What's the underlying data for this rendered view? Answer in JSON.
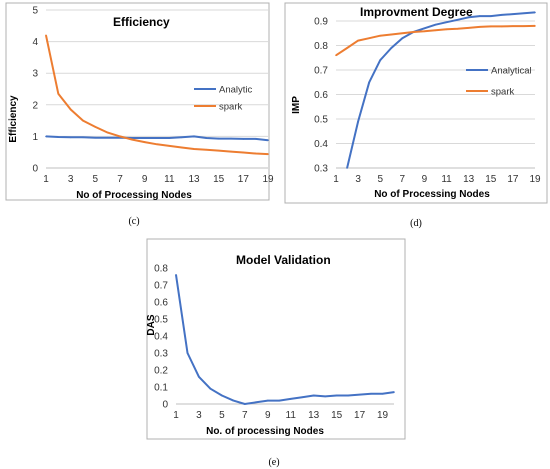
{
  "colors": {
    "analytic": "#4472c4",
    "spark": "#ed7d31",
    "frame": "#b0b0b0",
    "grid": "#d9d9d9"
  },
  "chart_data": [
    {
      "type": "line",
      "panel_label": "(c)",
      "title": "Efficiency",
      "xlabel": "No of Processing Nodes",
      "ylabel": "Efficiency",
      "xlim": [
        1,
        19
      ],
      "ylim": [
        0,
        5
      ],
      "xticks": [
        1,
        3,
        5,
        7,
        9,
        11,
        13,
        15,
        17,
        19
      ],
      "yticks": [
        0,
        1,
        2,
        3,
        4,
        5
      ],
      "grid": "horizontal",
      "legend": "right",
      "series": [
        {
          "name": "Analytic",
          "color": "#4472c4",
          "x": [
            1,
            2,
            3,
            4,
            5,
            6,
            7,
            8,
            9,
            10,
            11,
            12,
            13,
            14,
            15,
            16,
            17,
            18,
            19
          ],
          "y": [
            1.0,
            0.98,
            0.97,
            0.97,
            0.96,
            0.96,
            0.96,
            0.95,
            0.95,
            0.95,
            0.95,
            0.97,
            1.0,
            0.95,
            0.93,
            0.93,
            0.92,
            0.92,
            0.88
          ]
        },
        {
          "name": "spark",
          "color": "#ed7d31",
          "x": [
            1,
            2,
            3,
            4,
            5,
            6,
            7,
            8,
            9,
            10,
            11,
            12,
            13,
            14,
            15,
            16,
            17,
            18,
            19
          ],
          "y": [
            4.2,
            2.35,
            1.85,
            1.5,
            1.3,
            1.12,
            1.0,
            0.9,
            0.82,
            0.75,
            0.7,
            0.65,
            0.6,
            0.58,
            0.55,
            0.52,
            0.49,
            0.46,
            0.44
          ]
        }
      ]
    },
    {
      "type": "line",
      "panel_label": "(d)",
      "title": "Improvment Degree",
      "xlabel": "No of Processing Nodes",
      "ylabel": "IMP",
      "xlim": [
        1,
        19
      ],
      "ylim": [
        0.3,
        0.9
      ],
      "xticks": [
        1,
        3,
        5,
        7,
        9,
        11,
        13,
        15,
        17,
        19
      ],
      "yticks": [
        0.3,
        0.4,
        0.5,
        0.6,
        0.7,
        0.8,
        0.9
      ],
      "ytick_labels": [
        "0.3",
        "0.4",
        "0.5",
        "0.6",
        "0.7",
        "0.8",
        "0.9"
      ],
      "grid": "horizontal",
      "legend": "right",
      "series": [
        {
          "name": "Analytical",
          "color": "#4472c4",
          "x": [
            2,
            3,
            4,
            5,
            6,
            7,
            8,
            9,
            10,
            11,
            12,
            13,
            14,
            15,
            16,
            17,
            18,
            19
          ],
          "y": [
            0.3,
            0.49,
            0.65,
            0.74,
            0.79,
            0.83,
            0.855,
            0.87,
            0.885,
            0.895,
            0.905,
            0.915,
            0.92,
            0.92,
            0.925,
            0.928,
            0.932,
            0.935
          ]
        },
        {
          "name": "spark",
          "color": "#ed7d31",
          "x": [
            1,
            2,
            3,
            4,
            5,
            6,
            7,
            8,
            9,
            10,
            11,
            12,
            13,
            14,
            15,
            16,
            17,
            18,
            19
          ],
          "y": [
            0.76,
            0.79,
            0.82,
            0.83,
            0.84,
            0.845,
            0.85,
            0.855,
            0.858,
            0.862,
            0.866,
            0.868,
            0.872,
            0.876,
            0.878,
            0.878,
            0.879,
            0.879,
            0.88
          ]
        }
      ]
    },
    {
      "type": "line",
      "panel_label": "(e)",
      "title": "Model Validation",
      "xlabel": "No. of processing Nodes",
      "ylabel": "DAS",
      "xlim": [
        1,
        20
      ],
      "ylim": [
        0,
        0.8
      ],
      "xticks": [
        1,
        3,
        5,
        7,
        9,
        11,
        13,
        15,
        17,
        19
      ],
      "yticks": [
        0,
        0.1,
        0.2,
        0.3,
        0.4,
        0.5,
        0.6,
        0.7,
        0.8
      ],
      "ytick_labels": [
        "0",
        "0.1",
        "0.2",
        "0.3",
        "0.4",
        "0.5",
        "0.6",
        "0.7",
        "0.8"
      ],
      "grid": "none",
      "series": [
        {
          "color": "#4472c4",
          "x": [
            1,
            2,
            3,
            4,
            5,
            6,
            7,
            8,
            9,
            10,
            11,
            12,
            13,
            14,
            15,
            16,
            17,
            18,
            19,
            20
          ],
          "y": [
            0.76,
            0.3,
            0.16,
            0.09,
            0.05,
            0.02,
            0.0,
            0.01,
            0.02,
            0.02,
            0.03,
            0.04,
            0.05,
            0.045,
            0.05,
            0.05,
            0.055,
            0.06,
            0.06,
            0.07
          ]
        }
      ]
    }
  ]
}
